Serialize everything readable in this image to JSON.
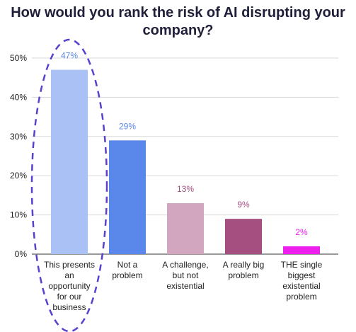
{
  "chart_data": {
    "type": "bar",
    "title": "How would you rank the risk of AI disrupting your company?",
    "categories": [
      "This presents an opportunity for our business",
      "Not a problem",
      "A challenge, but not existential",
      "A really big problem",
      "THE single biggest existential problem"
    ],
    "category_lines": [
      [
        "This presents",
        "an",
        "opportunity",
        "for our",
        "business"
      ],
      [
        "Not a",
        "problem"
      ],
      [
        "A challenge,",
        "but not",
        "existential"
      ],
      [
        "A really big",
        "problem"
      ],
      [
        "THE single",
        "biggest",
        "existential",
        "problem"
      ]
    ],
    "values": [
      47,
      29,
      13,
      9,
      2
    ],
    "value_labels": [
      "47%",
      "29%",
      "13%",
      "9%",
      "2%"
    ],
    "yticks": [
      0,
      10,
      20,
      30,
      40,
      50
    ],
    "ytick_labels": [
      "0%",
      "10%",
      "20%",
      "30%",
      "40%",
      "50%"
    ],
    "ylim": [
      0,
      50
    ],
    "grid": true,
    "bar_colors": [
      "#a9c1f4",
      "#5a87ea",
      "#d3a6bf",
      "#a54e80",
      "#ee1fee"
    ],
    "label_colors": [
      "#5a87ea",
      "#5a87ea",
      "#a54e80",
      "#a54e80",
      "#ee1fee"
    ],
    "highlight": {
      "category_index": 0,
      "style": "dashed-ellipse",
      "color": "#5b3fcf"
    }
  }
}
